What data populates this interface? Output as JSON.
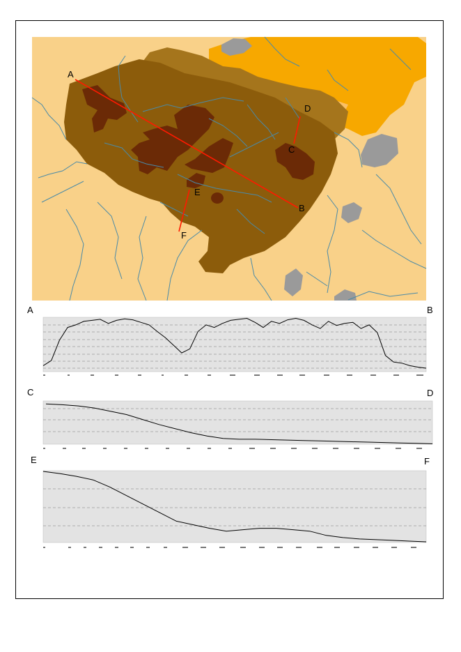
{
  "map": {
    "points": [
      {
        "id": "A",
        "label": "A"
      },
      {
        "id": "B",
        "label": "B"
      },
      {
        "id": "C",
        "label": "C"
      },
      {
        "id": "D",
        "label": "D"
      },
      {
        "id": "E",
        "label": "E"
      },
      {
        "id": "F",
        "label": "F"
      }
    ],
    "colors": {
      "background": "#f9d189",
      "orange_region": "#f7a800",
      "light_brown": "#a5751c",
      "mid_brown": "#8c5c0b",
      "dark_brown": "#6b2a06",
      "lakes": "#9a9a9a",
      "rivers": "#4a8aa8",
      "profile_line": "#ff1a00"
    }
  },
  "profiles": [
    {
      "name": "profile-AB",
      "start_label": "A",
      "end_label": "B",
      "y": [
        0.05,
        0.15,
        0.55,
        0.8,
        0.85,
        0.92,
        0.94,
        0.96,
        0.88,
        0.94,
        0.97,
        0.95,
        0.9,
        0.85,
        0.72,
        0.6,
        0.45,
        0.3,
        0.38,
        0.72,
        0.85,
        0.8,
        0.88,
        0.94,
        0.96,
        0.98,
        0.9,
        0.8,
        0.92,
        0.88,
        0.95,
        0.98,
        0.94,
        0.85,
        0.78,
        0.92,
        0.84,
        0.88,
        0.9,
        0.78,
        0.85,
        0.7,
        0.25,
        0.12,
        0.1,
        0.05,
        0.02,
        0.0
      ]
    },
    {
      "name": "profile-CD",
      "start_label": "C",
      "end_label": "D",
      "y": [
        0.98,
        0.96,
        0.93,
        0.88,
        0.8,
        0.72,
        0.6,
        0.48,
        0.38,
        0.28,
        0.2,
        0.14,
        0.12,
        0.12,
        0.11,
        0.1,
        0.09,
        0.08,
        0.07,
        0.06,
        0.05,
        0.04,
        0.03,
        0.02,
        0.01
      ]
    },
    {
      "name": "profile-EF",
      "start_label": "E",
      "end_label": "F",
      "y": [
        1.0,
        0.97,
        0.93,
        0.88,
        0.78,
        0.66,
        0.54,
        0.42,
        0.3,
        0.25,
        0.2,
        0.16,
        0.18,
        0.2,
        0.2,
        0.18,
        0.16,
        0.1,
        0.07,
        0.05,
        0.04,
        0.03,
        0.02,
        0.01
      ]
    }
  ]
}
